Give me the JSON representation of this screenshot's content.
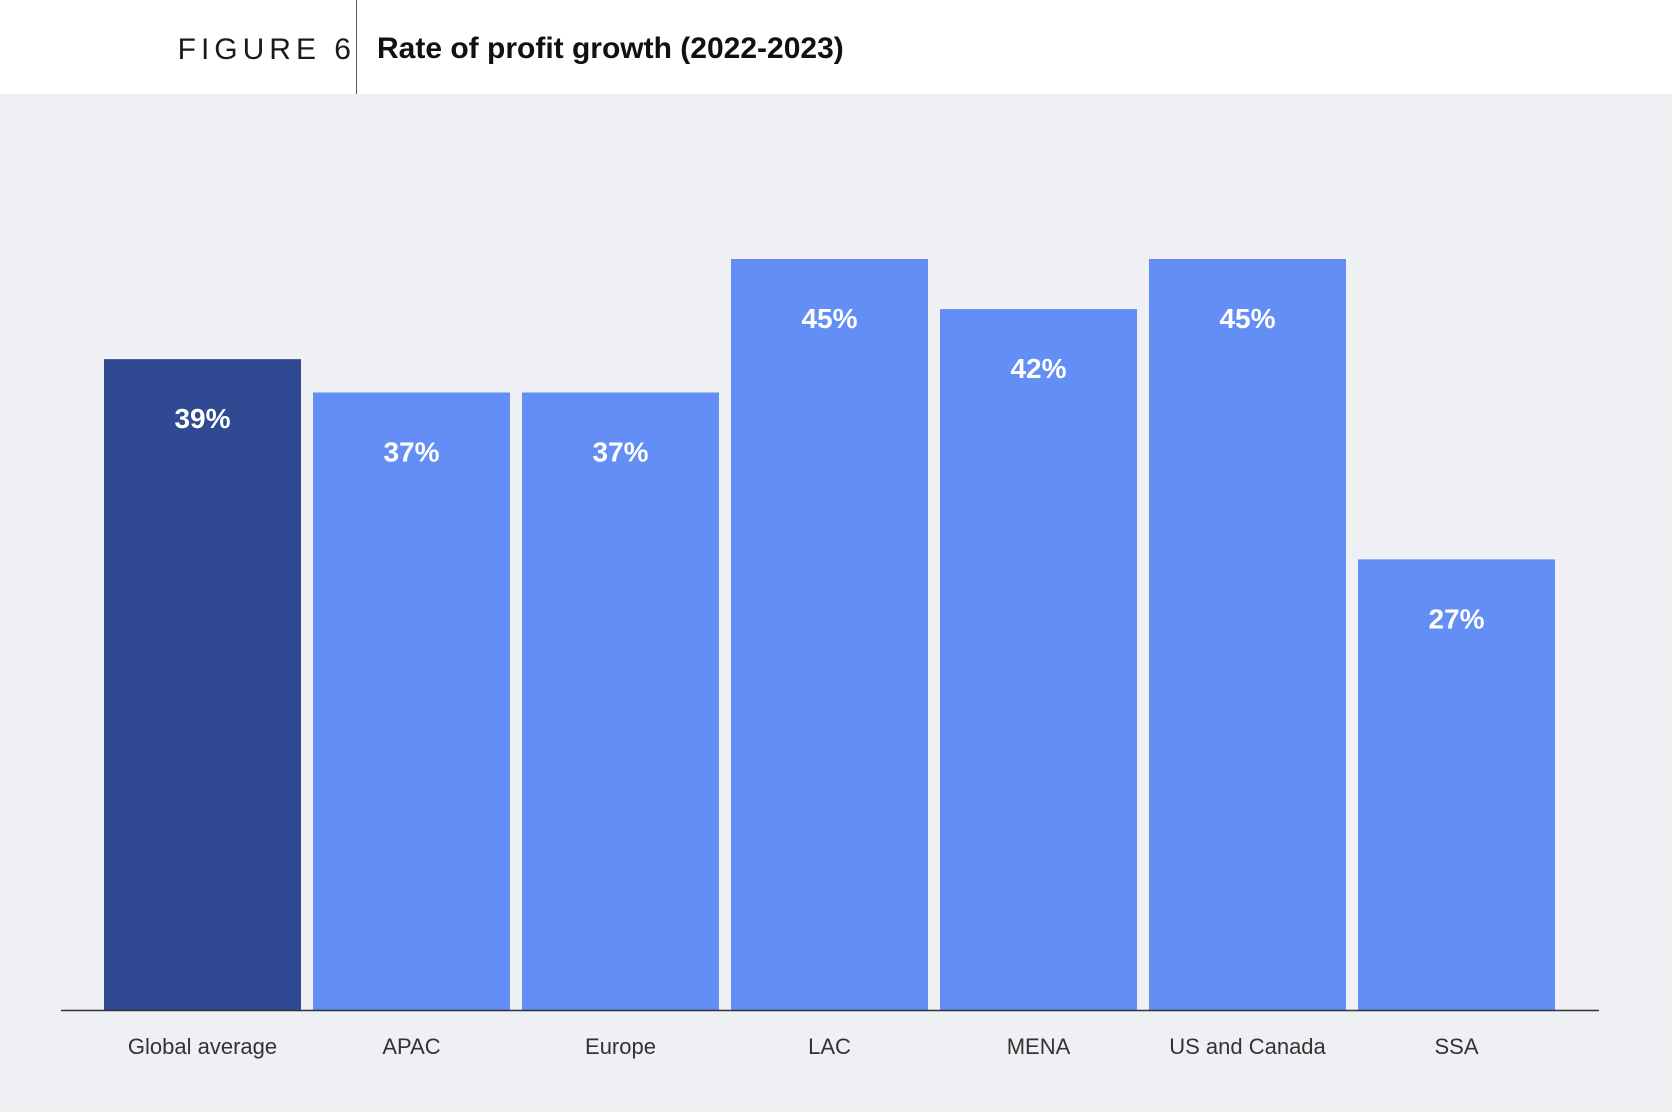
{
  "header": {
    "figure_label": "FIGURE 6",
    "title": "Rate of profit growth (2022-2023)"
  },
  "colors": {
    "highlight_bar": "#2f4a93",
    "bar": "#638ef5",
    "background": "#eff0f4",
    "value_label": "#ffffff",
    "category_label": "#333333",
    "axis": "#333333"
  },
  "chart_data": {
    "type": "bar",
    "title": "Rate of profit growth (2022-2023)",
    "categories": [
      "Global average",
      "APAC",
      "Europe",
      "LAC",
      "MENA",
      "US and Canada",
      "SSA"
    ],
    "values": [
      39,
      37,
      37,
      45,
      42,
      45,
      27
    ],
    "value_labels": [
      "39%",
      "37%",
      "37%",
      "45%",
      "42%",
      "45%",
      "27%"
    ],
    "highlight_index": 0,
    "unit": "%",
    "xlabel": "",
    "ylabel": "",
    "ylim": [
      0,
      48
    ],
    "grid": false,
    "legend": "none"
  }
}
